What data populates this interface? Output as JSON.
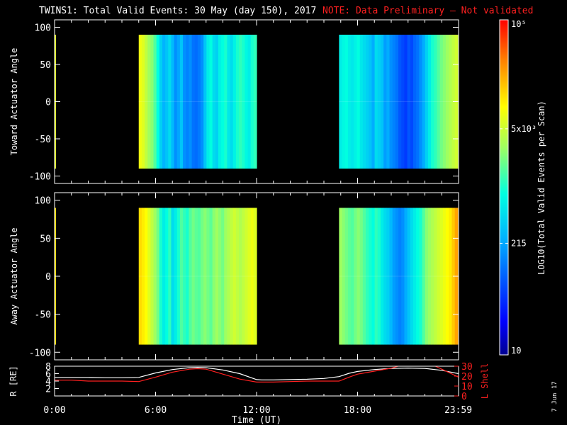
{
  "title": {
    "main": "TWINS1: Total Valid Events: 30 May (day 150), 2017",
    "note": "NOTE: Data Preliminary – Not validated"
  },
  "stamp": "7 Jun 17",
  "colorbar": {
    "label": "LOG10(Total Valid Events per Scan)",
    "ticks": [
      {
        "label": "10",
        "value": 10
      },
      {
        "label": "215",
        "value": 215
      },
      {
        "label": "5x10³",
        "value": 5000
      },
      {
        "label": "10⁵",
        "value": 100000
      }
    ],
    "range": [
      10,
      100000
    ],
    "scale": "log"
  },
  "chart_data": [
    {
      "type": "heatmap",
      "ylabel": "Toward Actuator Angle",
      "ylim": [
        -110,
        110
      ],
      "yticks": [
        100,
        50,
        0,
        -50,
        -100
      ],
      "xlim_hours": [
        0,
        24
      ],
      "angle_range": [
        -90,
        90
      ],
      "blocks": [
        {
          "start_hour": 0.0,
          "end_hour": 0.05,
          "angle_range": [
            -90,
            90
          ],
          "level": 0.7
        },
        {
          "start_hour": 5.0,
          "end_hour": 12.0,
          "levels": [
            0.72,
            0.7,
            0.66,
            0.62,
            0.6,
            0.55,
            0.48,
            0.4,
            0.35,
            0.38,
            0.42,
            0.36,
            0.3,
            0.33,
            0.38,
            0.3,
            0.28,
            0.3,
            0.26,
            0.25,
            0.27,
            0.3,
            0.38,
            0.45,
            0.48,
            0.42,
            0.4,
            0.46,
            0.48,
            0.5,
            0.44,
            0.42,
            0.46,
            0.5,
            0.52,
            0.5,
            0.47,
            0.45,
            0.5,
            0.52
          ]
        },
        {
          "start_hour": 16.9,
          "end_hour": 23.95,
          "levels": [
            0.45,
            0.47,
            0.48,
            0.45,
            0.44,
            0.46,
            0.48,
            0.44,
            0.42,
            0.4,
            0.38,
            0.34,
            0.42,
            0.4,
            0.38,
            0.32,
            0.34,
            0.3,
            0.28,
            0.26,
            0.22,
            0.2,
            0.18,
            0.22,
            0.2,
            0.24,
            0.26,
            0.3,
            0.34,
            0.4,
            0.45,
            0.5,
            0.52,
            0.55,
            0.58,
            0.6,
            0.62,
            0.64,
            0.66,
            0.68
          ]
        }
      ]
    },
    {
      "type": "heatmap",
      "ylabel": "Away Actuator Angle",
      "ylim": [
        -110,
        110
      ],
      "yticks": [
        100,
        50,
        0,
        -50,
        -100
      ],
      "xlim_hours": [
        0,
        24
      ],
      "angle_range": [
        -90,
        90
      ],
      "blocks": [
        {
          "start_hour": 0.0,
          "end_hour": 0.05,
          "angle_range": [
            -90,
            90
          ],
          "level": 0.78
        },
        {
          "start_hour": 5.0,
          "end_hour": 12.0,
          "levels": [
            0.78,
            0.76,
            0.74,
            0.7,
            0.66,
            0.62,
            0.58,
            0.5,
            0.45,
            0.48,
            0.52,
            0.42,
            0.45,
            0.5,
            0.55,
            0.52,
            0.5,
            0.55,
            0.58,
            0.56,
            0.55,
            0.58,
            0.6,
            0.58,
            0.56,
            0.6,
            0.62,
            0.6,
            0.58,
            0.62,
            0.64,
            0.66,
            0.68,
            0.66,
            0.64,
            0.66,
            0.68,
            0.7,
            0.72,
            0.7
          ]
        },
        {
          "start_hour": 16.9,
          "end_hour": 23.95,
          "levels": [
            0.62,
            0.6,
            0.58,
            0.56,
            0.55,
            0.58,
            0.6,
            0.58,
            0.55,
            0.52,
            0.5,
            0.48,
            0.52,
            0.5,
            0.45,
            0.42,
            0.4,
            0.36,
            0.32,
            0.3,
            0.28,
            0.3,
            0.34,
            0.38,
            0.42,
            0.45,
            0.48,
            0.5,
            0.55,
            0.6,
            0.62,
            0.64,
            0.66,
            0.68,
            0.7,
            0.72,
            0.74,
            0.76,
            0.8,
            0.84
          ]
        }
      ]
    },
    {
      "type": "line",
      "ylabel_left": "R [RE]",
      "ylabel_right": "L Shell",
      "xlabel": "Time (UT)",
      "xticks": [
        "0:00",
        "6:00",
        "12:00",
        "18:00",
        "23:59"
      ],
      "xtick_hours": [
        0,
        6,
        12,
        18,
        23.98
      ],
      "xlim_hours": [
        0,
        24
      ],
      "ylim_left": [
        0,
        8
      ],
      "ylim_right": [
        0,
        30
      ],
      "yticks_left": [
        8,
        6,
        4,
        2
      ],
      "yticks_right": [
        30,
        20,
        10,
        0
      ],
      "series": [
        {
          "color": "#ffffff",
          "axis": "left",
          "x": [
            0,
            1,
            2,
            3,
            4,
            5,
            6,
            7,
            8,
            8.5,
            9,
            10,
            11,
            12,
            12.3,
            13,
            14,
            15,
            16,
            16.9,
            17.5,
            18,
            19,
            20,
            21,
            22,
            23,
            24
          ],
          "y": [
            5.0,
            5.0,
            5.0,
            4.9,
            4.9,
            5.0,
            6.2,
            7.1,
            7.6,
            7.7,
            7.6,
            7.0,
            6.0,
            4.4,
            4.3,
            4.3,
            4.4,
            4.5,
            4.7,
            5.2,
            6.1,
            6.6,
            7.1,
            7.4,
            7.5,
            7.4,
            6.9,
            6.0
          ]
        },
        {
          "color": "#ff2020",
          "axis": "right",
          "x": [
            0,
            1,
            2,
            3,
            4,
            5,
            6,
            7,
            8,
            8.5,
            9,
            10,
            11,
            12,
            12.3,
            13,
            14,
            15,
            16,
            16.9,
            17.5,
            18,
            19,
            20,
            20.6,
            22.5,
            23,
            24
          ],
          "y": [
            16,
            16,
            15,
            15,
            15,
            14.5,
            19,
            24,
            27,
            27.5,
            27,
            22,
            17,
            14,
            14,
            14,
            14.5,
            15,
            15,
            15,
            19,
            22,
            25,
            28,
            31,
            31,
            27,
            19
          ]
        }
      ]
    }
  ]
}
